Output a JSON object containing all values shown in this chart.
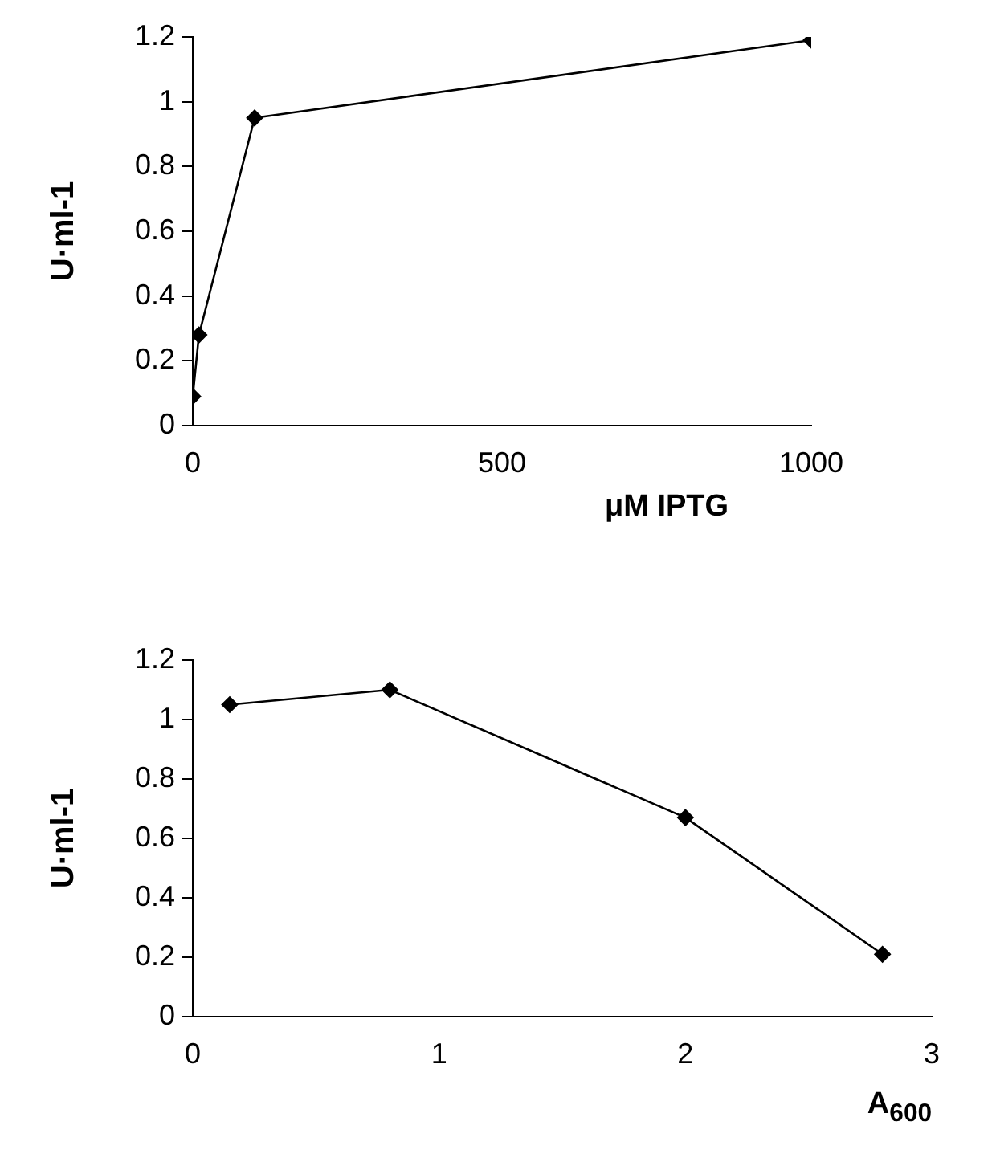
{
  "chart_data": [
    {
      "type": "line",
      "ylabel": "U·ml-1",
      "xlabel": "μM IPTG",
      "x": [
        0,
        10,
        100,
        1000
      ],
      "values": [
        0.09,
        0.28,
        0.95,
        1.19
      ],
      "color": "#000000",
      "marker": "diamond",
      "xlim": [
        0,
        1000
      ],
      "xticks": [
        0,
        500,
        1000
      ],
      "ylim": [
        0,
        1.2
      ],
      "yticks": [
        0,
        0.2,
        0.4,
        0.6,
        0.8,
        1,
        1.2
      ]
    },
    {
      "type": "line",
      "ylabel": "U·ml-1",
      "xlabel": "A$_{600}$",
      "x": [
        0.15,
        0.8,
        2,
        2.8
      ],
      "values": [
        1.05,
        1.1,
        0.67,
        0.21
      ],
      "color": "#000000",
      "marker": "diamond",
      "xlim": [
        0,
        3
      ],
      "xticks": [
        0,
        1,
        2,
        3
      ],
      "ylim": [
        0,
        1.2
      ],
      "yticks": [
        0,
        0.2,
        0.4,
        0.6,
        0.8,
        1,
        1.2
      ]
    }
  ]
}
